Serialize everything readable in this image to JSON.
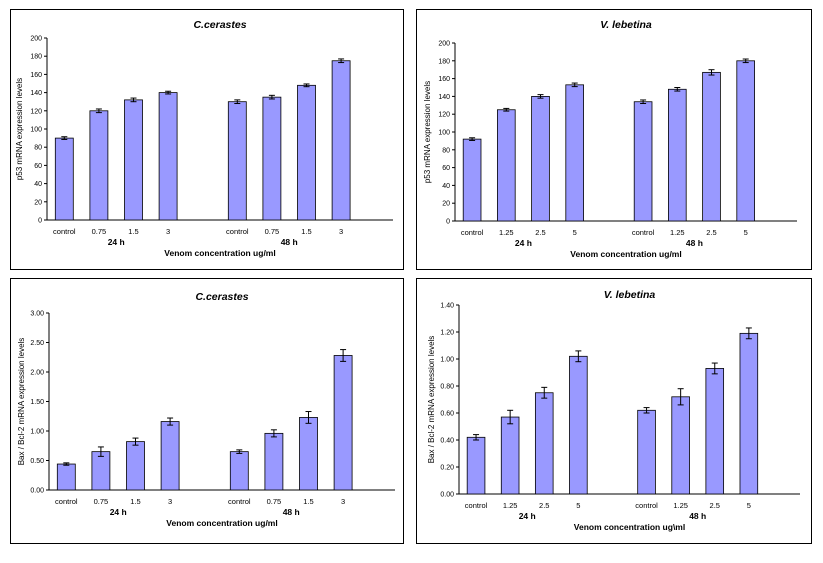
{
  "chart_data": [
    {
      "type": "bar",
      "title": "C.cerastes",
      "ylabel": "p53 mRNA expression levels",
      "xlabel": "Venom concentration  ug/ml",
      "ylim": [
        0,
        200
      ],
      "yticks": [
        "0",
        "20",
        "40",
        "60",
        "80",
        "100",
        "120",
        "140",
        "160",
        "180",
        "200"
      ],
      "groups": [
        {
          "name": "24 h",
          "categories": [
            "control",
            "0.75",
            "1.5",
            "3"
          ],
          "values": [
            90,
            120,
            132,
            140
          ],
          "errors": [
            1.5,
            2,
            2,
            1.5
          ]
        },
        {
          "name": "48 h",
          "categories": [
            "control",
            "0.75",
            "1.5",
            "3"
          ],
          "values": [
            130,
            135,
            148,
            175
          ],
          "errors": [
            2,
            2,
            1.5,
            2
          ]
        }
      ]
    },
    {
      "type": "bar",
      "title": "V. lebetina",
      "ylabel": "p53 mRNA expression levels",
      "xlabel": "Venom concentration  ug/ml",
      "ylim": [
        0,
        200
      ],
      "yticks": [
        "0",
        "20",
        "40",
        "60",
        "80",
        "100",
        "120",
        "140",
        "160",
        "180",
        "200"
      ],
      "groups": [
        {
          "name": "24 h",
          "categories": [
            "control",
            "1.25",
            "2.5",
            "5"
          ],
          "values": [
            92,
            125,
            140,
            153
          ],
          "errors": [
            1.5,
            1.5,
            2,
            2
          ]
        },
        {
          "name": "48 h",
          "categories": [
            "control",
            "1.25",
            "2.5",
            "5"
          ],
          "values": [
            134,
            148,
            167,
            180
          ],
          "errors": [
            2,
            2,
            3,
            2
          ]
        }
      ]
    },
    {
      "type": "bar",
      "title": "C.cerastes",
      "ylabel": "Bax / Bcl-2 mRNA expression levels",
      "xlabel": "Venom concentration  ug/ml",
      "ylim": [
        0,
        3
      ],
      "yticks": [
        "0.00",
        "0.50",
        "1.00",
        "1.50",
        "2.00",
        "2.50",
        "3.00"
      ],
      "groups": [
        {
          "name": "24 h",
          "categories": [
            "control",
            "0.75",
            "1.5",
            "3"
          ],
          "values": [
            0.44,
            0.65,
            0.82,
            1.16
          ],
          "errors": [
            0.02,
            0.08,
            0.06,
            0.06
          ]
        },
        {
          "name": "48 h",
          "categories": [
            "control",
            "0.75",
            "1.5",
            "3"
          ],
          "values": [
            0.65,
            0.96,
            1.23,
            2.28
          ],
          "errors": [
            0.03,
            0.06,
            0.1,
            0.1
          ]
        }
      ]
    },
    {
      "type": "bar",
      "title": "V. lebetina",
      "ylabel": "Bax / Bcl-2 mRNA expression levels",
      "xlabel": "Venom concentration  ug\\ml",
      "ylim": [
        0,
        1.4
      ],
      "yticks": [
        "0.00",
        "0.20",
        "0.40",
        "0.60",
        "0.80",
        "1.00",
        "1.20",
        "1.40"
      ],
      "groups": [
        {
          "name": "24 h",
          "categories": [
            "control",
            "1.25",
            "2.5",
            "5"
          ],
          "values": [
            0.42,
            0.57,
            0.75,
            1.02
          ],
          "errors": [
            0.02,
            0.05,
            0.04,
            0.04
          ]
        },
        {
          "name": "48 h",
          "categories": [
            "control",
            "1.25",
            "2.5",
            "5"
          ],
          "values": [
            0.62,
            0.72,
            0.93,
            1.19
          ],
          "errors": [
            0.02,
            0.06,
            0.04,
            0.04
          ]
        }
      ]
    }
  ]
}
